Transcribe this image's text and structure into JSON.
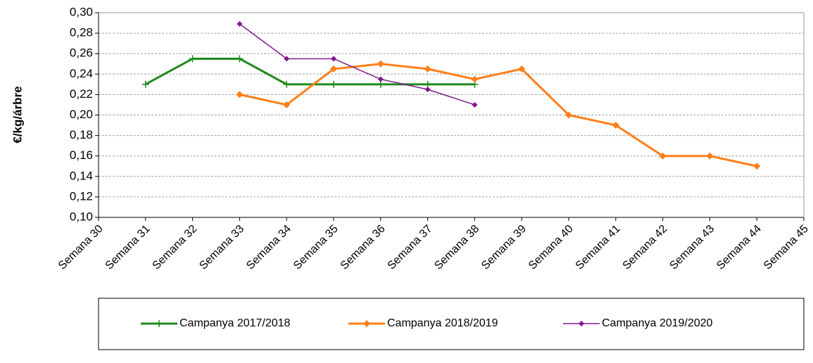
{
  "chart_data": {
    "type": "line",
    "y_label": "€/kg/árbre",
    "categories": [
      "Semana 30",
      "Semana 31",
      "Semana 32",
      "Semana 33",
      "Semana 34",
      "Semana 35",
      "Semana 36",
      "Semana 37",
      "Semana 38",
      "Semana 39",
      "Semana 40",
      "Semana 41",
      "Semana 42",
      "Semana 43",
      "Semana 44",
      "Semana 45"
    ],
    "series": [
      {
        "name": "Campanya 2017/2018",
        "color": "#1e8a1e",
        "marker": "plus",
        "values": [
          null,
          0.23,
          0.255,
          0.255,
          0.23,
          0.23,
          0.23,
          0.23,
          0.23,
          null,
          null,
          null,
          null,
          null,
          null,
          null
        ]
      },
      {
        "name": "Campanya 2018/2019",
        "color": "#ff7f1a",
        "marker": "diamond",
        "values": [
          null,
          null,
          null,
          0.22,
          0.21,
          0.245,
          0.25,
          0.245,
          0.235,
          0.245,
          0.2,
          0.19,
          0.16,
          0.16,
          0.15,
          null
        ]
      },
      {
        "name": "Campanya 2019/2020",
        "color": "#7f1a8a",
        "marker": "diamond",
        "values": [
          null,
          null,
          null,
          0.289,
          0.255,
          0.255,
          0.235,
          0.225,
          0.21,
          null,
          null,
          null,
          null,
          null,
          null,
          null
        ]
      }
    ],
    "ylim": [
      0.1,
      0.3
    ],
    "yticks": [
      {
        "value": 0.1,
        "label": "0,10"
      },
      {
        "value": 0.12,
        "label": "0,12"
      },
      {
        "value": 0.14,
        "label": "0,14"
      },
      {
        "value": 0.16,
        "label": "0,16"
      },
      {
        "value": 0.18,
        "label": "0,18"
      },
      {
        "value": 0.2,
        "label": "0,20"
      },
      {
        "value": 0.22,
        "label": "0,22"
      },
      {
        "value": 0.24,
        "label": "0,24"
      },
      {
        "value": 0.26,
        "label": "0,26"
      },
      {
        "value": 0.28,
        "label": "0,28"
      },
      {
        "value": 0.3,
        "label": "0,30"
      }
    ],
    "grid": true,
    "legend": "bottom"
  }
}
